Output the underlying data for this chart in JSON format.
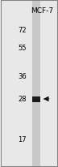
{
  "title": "MCF-7",
  "mw_markers": [
    72,
    55,
    36,
    28,
    17
  ],
  "bg_color": "#e8e8e8",
  "lane_color": "#c8c8c8",
  "band_color": "#1a1a1a",
  "border_color": "#555555",
  "arrow_color": "#111111",
  "title_fontsize": 6.5,
  "marker_fontsize": 6,
  "fig_width": 0.72,
  "fig_height": 2.07,
  "dpi": 100
}
